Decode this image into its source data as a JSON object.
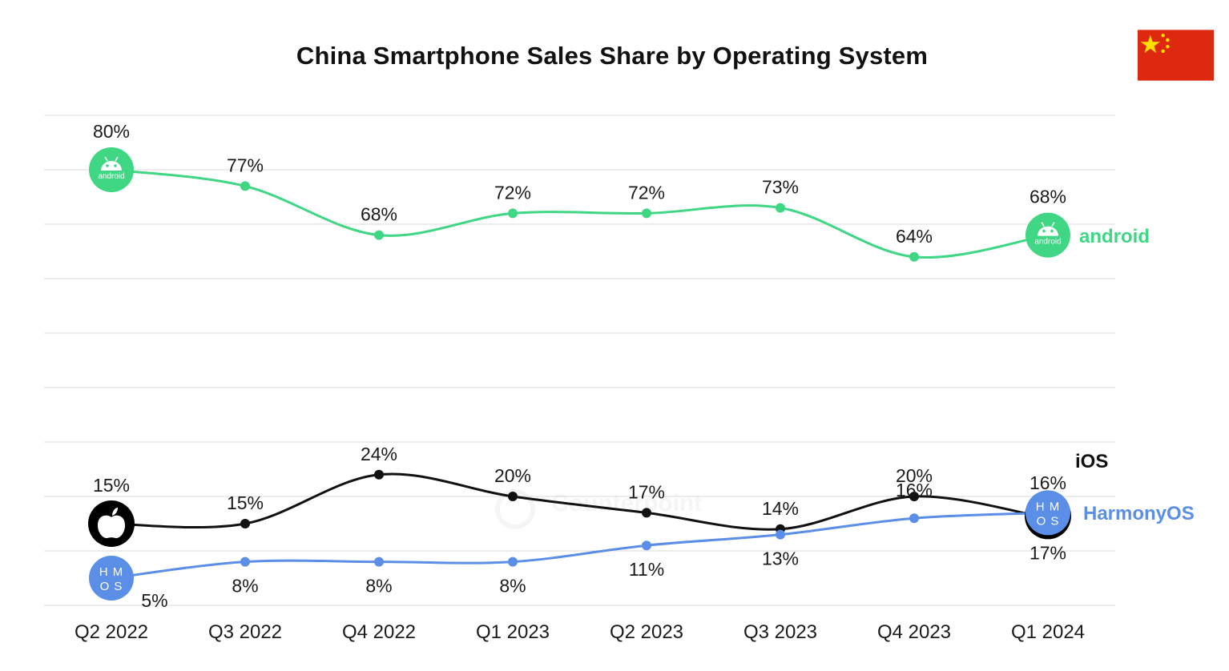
{
  "chart_data": {
    "type": "line",
    "title": "China Smartphone Sales Share by Operating System",
    "categories": [
      "Q2 2022",
      "Q3 2022",
      "Q4 2022",
      "Q1 2023",
      "Q2 2023",
      "Q3 2023",
      "Q4 2023",
      "Q1 2024"
    ],
    "ylim": [
      0,
      90
    ],
    "grid": true,
    "series": [
      {
        "name": "android",
        "color": "#3fd684",
        "values": [
          80,
          77,
          68,
          72,
          72,
          73,
          64,
          68
        ],
        "labels": [
          "80%",
          "77%",
          "68%",
          "72%",
          "72%",
          "73%",
          "64%",
          "68%"
        ],
        "icon": "android-icon",
        "icon_text": "android"
      },
      {
        "name": "iOS",
        "color": "#111111",
        "values": [
          15,
          15,
          24,
          20,
          17,
          14,
          20,
          16
        ],
        "labels": [
          "15%",
          "15%",
          "24%",
          "20%",
          "17%",
          "14%",
          "20%",
          "16%"
        ],
        "icon": "apple-icon"
      },
      {
        "name": "HarmonyOS",
        "color": "#5b8ee6",
        "values": [
          5,
          8,
          8,
          8,
          11,
          13,
          16,
          17
        ],
        "labels": [
          "5%",
          "8%",
          "8%",
          "8%",
          "11%",
          "13%",
          "16%",
          "17%"
        ],
        "icon": "harmonyos-icon",
        "icon_text": [
          "H M",
          "O S"
        ]
      }
    ]
  },
  "flag": {
    "icon": "china-flag-icon",
    "red": "#de2910",
    "yellow": "#ffde00"
  },
  "watermark": "Counterpoint"
}
